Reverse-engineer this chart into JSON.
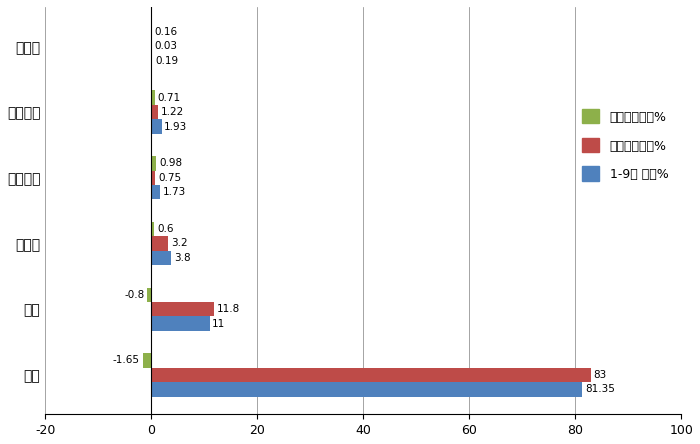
{
  "categories": [
    "柴油",
    "汽油",
    "纯电动",
    "混合动力",
    "燃料电池",
    "燃气类"
  ],
  "series_order": [
    "占比同比增减%",
    "去年同期占比%",
    "1-9月 占比%"
  ],
  "series": {
    "占比同比增减%": [
      -1.65,
      -0.8,
      0.6,
      0.98,
      0.71,
      0.16
    ],
    "去年同期占比%": [
      83,
      11.8,
      3.2,
      0.75,
      1.22,
      0.03
    ],
    "1-9月 占比%": [
      81.35,
      11,
      3.8,
      1.73,
      1.93,
      0.19
    ]
  },
  "colors": {
    "占比同比增减%": "#8DB04A",
    "去年同期占比%": "#BE4B48",
    "1-9月 占比%": "#4F81BD"
  },
  "xlim": [
    -20,
    100
  ],
  "xticks": [
    -20,
    0,
    20,
    40,
    60,
    80,
    100
  ],
  "bar_height": 0.22,
  "background_color": "#ffffff",
  "label_fontsize": 7.5,
  "ytick_fontsize": 10,
  "xtick_fontsize": 9,
  "legend_fontsize": 9
}
